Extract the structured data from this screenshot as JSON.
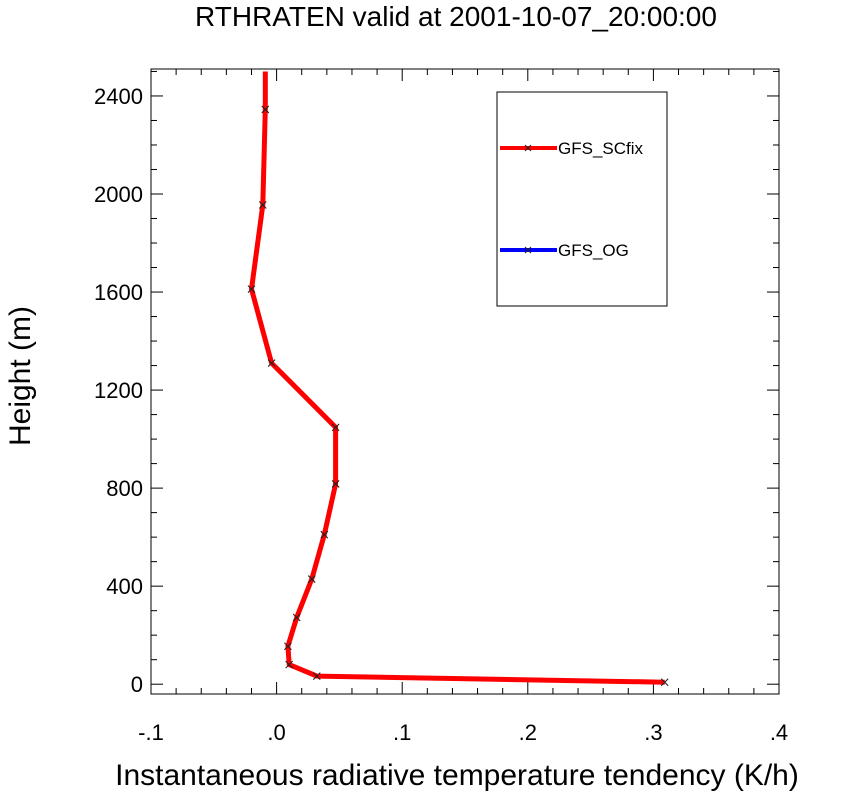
{
  "chart_data": {
    "type": "line",
    "title": "RTHRATEN valid at 2001-10-07_20:00:00",
    "xlabel": "Instantaneous radiative temperature tendency (K/h)",
    "ylabel": "Height (m)",
    "xlim": [
      -0.1,
      0.4
    ],
    "ylim": [
      -40,
      2510
    ],
    "x_ticks": [
      -0.1,
      0.0,
      0.1,
      0.2,
      0.3,
      0.4
    ],
    "x_tick_labels": [
      "-.1",
      ".0",
      ".1",
      ".2",
      ".3",
      ".4"
    ],
    "y_ticks": [
      0,
      400,
      800,
      1200,
      1600,
      2000,
      2400
    ],
    "y_tick_labels": [
      "0",
      "400",
      "800",
      "1200",
      "1600",
      "2000",
      "2400"
    ],
    "grid": false,
    "legend_position": "top-right",
    "series": [
      {
        "name": "GFS_SCfix",
        "color": "#ff0000",
        "marker": "x",
        "x": [
          0.309,
          0.032,
          0.01,
          0.009,
          0.016,
          0.028,
          0.038,
          0.047,
          0.047,
          -0.004,
          -0.02,
          -0.011,
          -0.009,
          -0.009
        ],
        "y": [
          8,
          33,
          80,
          155,
          272,
          429,
          610,
          817,
          1048,
          1310,
          1612,
          1955,
          2345,
          2500
        ]
      },
      {
        "name": "GFS_OG",
        "color": "#0000ff",
        "marker": "x",
        "x": [
          0.309,
          0.032,
          0.01,
          0.009,
          0.016,
          0.028,
          0.038,
          0.047,
          0.047,
          -0.004,
          -0.02,
          -0.011,
          -0.009,
          -0.009
        ],
        "y": [
          8,
          33,
          80,
          155,
          272,
          429,
          610,
          817,
          1048,
          1310,
          1612,
          1955,
          2345,
          2500
        ]
      }
    ]
  }
}
